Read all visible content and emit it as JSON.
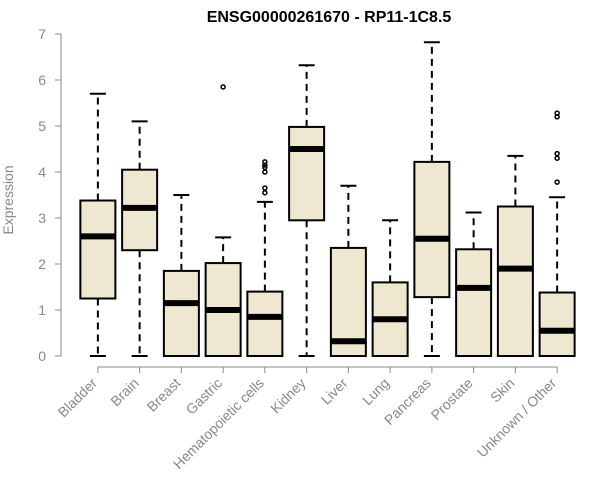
{
  "chart_data": {
    "type": "boxplot",
    "title": "ENSG00000261670 - RP11-1C8.5",
    "xlabel": "",
    "ylabel": "Expression",
    "ylim": [
      0,
      7
    ],
    "yticks": [
      0,
      1,
      2,
      3,
      4,
      5,
      6,
      7
    ],
    "box_color": "#efe8d0",
    "categories": [
      "Bladder",
      "Brain",
      "Breast",
      "Gastric",
      "Hematopoietic cells",
      "Kidney",
      "Liver",
      "Lung",
      "Pancreas",
      "Prostate",
      "Skin",
      "Unknown / Other"
    ],
    "boxes": [
      {
        "category": "Bladder",
        "whisker_low": 0,
        "q1": 1.25,
        "median": 2.6,
        "q3": 3.38,
        "whisker_high": 5.7,
        "outliers": []
      },
      {
        "category": "Brain",
        "whisker_low": 0,
        "q1": 2.3,
        "median": 3.22,
        "q3": 4.05,
        "whisker_high": 5.1,
        "outliers": []
      },
      {
        "category": "Breast",
        "whisker_low": 0,
        "q1": 0,
        "median": 1.15,
        "q3": 1.85,
        "whisker_high": 3.5,
        "outliers": []
      },
      {
        "category": "Gastric",
        "whisker_low": 0,
        "q1": 0,
        "median": 1.0,
        "q3": 2.02,
        "whisker_high": 2.58,
        "outliers": [
          5.85
        ]
      },
      {
        "category": "Hematopoietic cells",
        "whisker_low": 0,
        "q1": 0,
        "median": 0.85,
        "q3": 1.4,
        "whisker_high": 3.35,
        "outliers": [
          3.55,
          3.65,
          4.0,
          4.1,
          4.15,
          4.22
        ]
      },
      {
        "category": "Kidney",
        "whisker_low": 0,
        "q1": 2.95,
        "median": 4.5,
        "q3": 4.98,
        "whisker_high": 6.32,
        "outliers": []
      },
      {
        "category": "Liver",
        "whisker_low": 0,
        "q1": 0,
        "median": 0.32,
        "q3": 2.35,
        "whisker_high": 3.7,
        "outliers": []
      },
      {
        "category": "Lung",
        "whisker_low": 0,
        "q1": 0,
        "median": 0.8,
        "q3": 1.6,
        "whisker_high": 2.95,
        "outliers": []
      },
      {
        "category": "Pancreas",
        "whisker_low": 0,
        "q1": 1.28,
        "median": 2.55,
        "q3": 4.22,
        "whisker_high": 6.82,
        "outliers": []
      },
      {
        "category": "Prostate",
        "whisker_low": 0,
        "q1": 0,
        "median": 1.48,
        "q3": 2.32,
        "whisker_high": 3.12,
        "outliers": []
      },
      {
        "category": "Skin",
        "whisker_low": 0,
        "q1": 0,
        "median": 1.9,
        "q3": 3.25,
        "whisker_high": 4.35,
        "outliers": []
      },
      {
        "category": "Unknown / Other",
        "whisker_low": 0,
        "q1": 0,
        "median": 0.55,
        "q3": 1.38,
        "whisker_high": 3.45,
        "outliers": [
          3.78,
          4.3,
          4.4,
          5.2,
          5.28
        ]
      }
    ]
  }
}
